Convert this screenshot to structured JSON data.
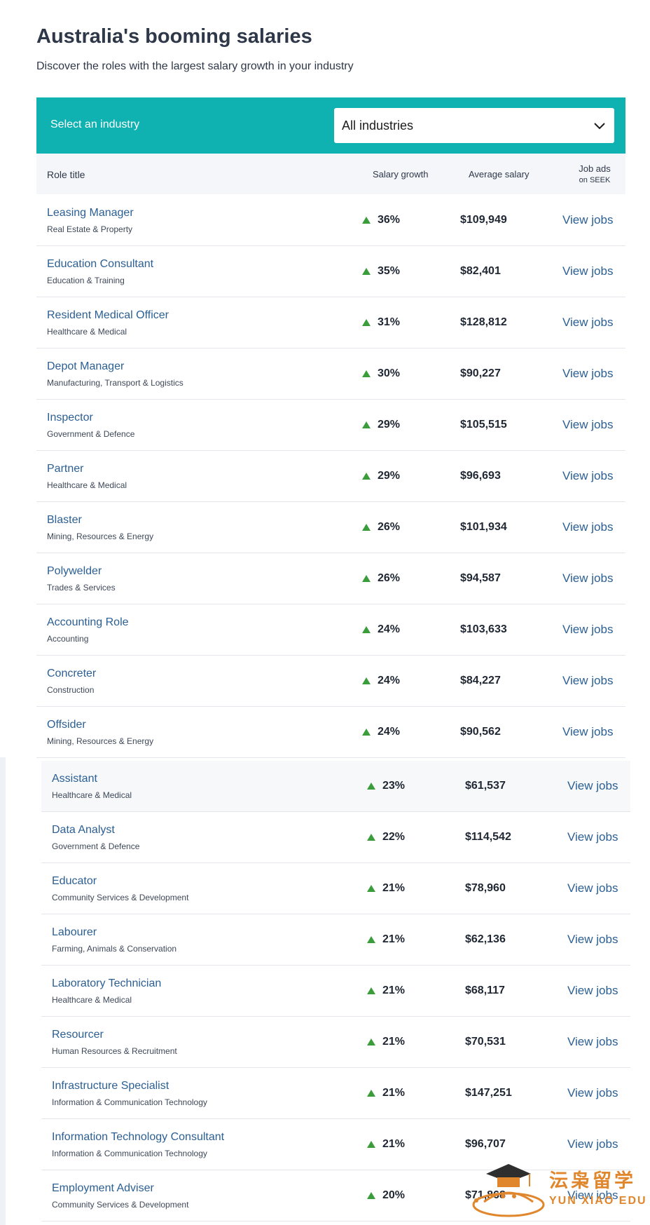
{
  "header": {
    "title": "Australia's booming salaries",
    "subtitle": "Discover the roles with the largest salary growth in your industry"
  },
  "industry_filter": {
    "label": "Select an industry",
    "selected": "All industries",
    "icon": "chevron-down-icon"
  },
  "table": {
    "columns": {
      "role": "Role title",
      "growth": "Salary growth",
      "salary": "Average salary",
      "ads": "Job ads",
      "ads_sub": "on SEEK"
    },
    "rows": [
      {
        "title": "Leasing Manager",
        "industry": "Real Estate & Property",
        "growth": "36%",
        "salary": "$109,949",
        "link": "View jobs"
      },
      {
        "title": "Education Consultant",
        "industry": "Education & Training",
        "growth": "35%",
        "salary": "$82,401",
        "link": "View jobs"
      },
      {
        "title": "Resident Medical Officer",
        "industry": "Healthcare & Medical",
        "growth": "31%",
        "salary": "$128,812",
        "link": "View jobs"
      },
      {
        "title": "Depot Manager",
        "industry": "Manufacturing, Transport & Logistics",
        "growth": "30%",
        "salary": "$90,227",
        "link": "View jobs"
      },
      {
        "title": "Inspector",
        "industry": "Government & Defence",
        "growth": "29%",
        "salary": "$105,515",
        "link": "View jobs"
      },
      {
        "title": "Partner",
        "industry": "Healthcare & Medical",
        "growth": "29%",
        "salary": "$96,693",
        "link": "View jobs"
      },
      {
        "title": "Blaster",
        "industry": "Mining, Resources & Energy",
        "growth": "26%",
        "salary": "$101,934",
        "link": "View jobs"
      },
      {
        "title": "Polywelder",
        "industry": "Trades & Services",
        "growth": "26%",
        "salary": "$94,587",
        "link": "View jobs"
      },
      {
        "title": "Accounting Role",
        "industry": "Accounting",
        "growth": "24%",
        "salary": "$103,633",
        "link": "View jobs"
      },
      {
        "title": "Concreter",
        "industry": "Construction",
        "growth": "24%",
        "salary": "$84,227",
        "link": "View jobs"
      },
      {
        "title": "Offsider",
        "industry": "Mining, Resources & Energy",
        "growth": "24%",
        "salary": "$90,562",
        "link": "View jobs"
      },
      {
        "title": "Assistant",
        "industry": "Healthcare & Medical",
        "growth": "23%",
        "salary": "$61,537",
        "link": "View jobs"
      },
      {
        "title": "Data Analyst",
        "industry": "Government & Defence",
        "growth": "22%",
        "salary": "$114,542",
        "link": "View jobs"
      },
      {
        "title": "Educator",
        "industry": "Community Services & Development",
        "growth": "21%",
        "salary": "$78,960",
        "link": "View jobs"
      },
      {
        "title": "Labourer",
        "industry": "Farming, Animals & Conservation",
        "growth": "21%",
        "salary": "$62,136",
        "link": "View jobs"
      },
      {
        "title": "Laboratory Technician",
        "industry": "Healthcare & Medical",
        "growth": "21%",
        "salary": "$68,117",
        "link": "View jobs"
      },
      {
        "title": "Resourcer",
        "industry": "Human Resources & Recruitment",
        "growth": "21%",
        "salary": "$70,531",
        "link": "View jobs"
      },
      {
        "title": "Infrastructure Specialist",
        "industry": "Information & Communication Technology",
        "growth": "21%",
        "salary": "$147,251",
        "link": "View jobs"
      },
      {
        "title": "Information Technology Consultant",
        "industry": "Information & Communication Technology",
        "growth": "21%",
        "salary": "$96,707",
        "link": "View jobs"
      },
      {
        "title": "Employment Adviser",
        "industry": "Community Services & Development",
        "growth": "20%",
        "salary": "$71,868",
        "link": "View jobs"
      }
    ]
  },
  "watermark": {
    "cn": "沄枭留学",
    "en": "YUN XIAO EDU",
    "color": "#e0862c"
  },
  "colors": {
    "accent": "#0fb1b1",
    "link": "#2b5f93",
    "growth_up": "#3a9d3a"
  }
}
